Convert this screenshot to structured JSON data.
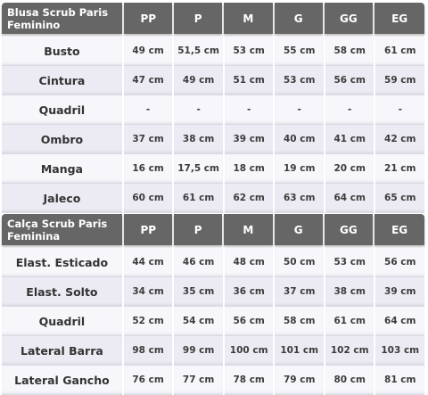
{
  "columns": [
    "PP",
    "P",
    "M",
    "G",
    "GG",
    "EG"
  ],
  "tables": [
    {
      "title": "Blusa Scrub Paris Feminino",
      "rows": [
        {
          "label": "Busto",
          "values": [
            "49 cm",
            "51,5 cm",
            "53 cm",
            "55 cm",
            "58 cm",
            "61 cm"
          ]
        },
        {
          "label": "Cintura",
          "values": [
            "47 cm",
            "49 cm",
            "51 cm",
            "53 cm",
            "56 cm",
            "59 cm"
          ]
        },
        {
          "label": "Quadril",
          "values": [
            "-",
            "-",
            "-",
            "-",
            "-",
            "-"
          ]
        },
        {
          "label": "Ombro",
          "values": [
            "37 cm",
            "38 cm",
            "39 cm",
            "40 cm",
            "41 cm",
            "42 cm"
          ]
        },
        {
          "label": "Manga",
          "values": [
            "16 cm",
            "17,5 cm",
            "18 cm",
            "19 cm",
            "20 cm",
            "21 cm"
          ]
        },
        {
          "label": "Jaleco",
          "values": [
            "60 cm",
            "61 cm",
            "62 cm",
            "63 cm",
            "64 cm",
            "65 cm"
          ]
        }
      ]
    },
    {
      "title": "Calça Scrub Paris Feminina",
      "rows": [
        {
          "label": "Elast. Esticado",
          "values": [
            "44 cm",
            "46 cm",
            "48 cm",
            "50 cm",
            "53 cm",
            "56 cm"
          ]
        },
        {
          "label": "Elast. Solto",
          "values": [
            "34 cm",
            "35 cm",
            "36 cm",
            "37 cm",
            "38 cm",
            "39 cm"
          ]
        },
        {
          "label": "Quadril",
          "values": [
            "52 cm",
            "54 cm",
            "56 cm",
            "58 cm",
            "61 cm",
            "64 cm"
          ]
        },
        {
          "label": "Lateral Barra",
          "values": [
            "98 cm",
            "99 cm",
            "100 cm",
            "101 cm",
            "102 cm",
            "103 cm"
          ]
        },
        {
          "label": "Lateral Gancho",
          "values": [
            "76 cm",
            "77 cm",
            "78 cm",
            "79 cm",
            "80 cm",
            "81 cm"
          ]
        }
      ]
    }
  ],
  "colors": {
    "header_bg": "#666666",
    "row_light": "#f7f7fb",
    "row_dark": "#ecebf3",
    "text": "#3c3c3c"
  }
}
